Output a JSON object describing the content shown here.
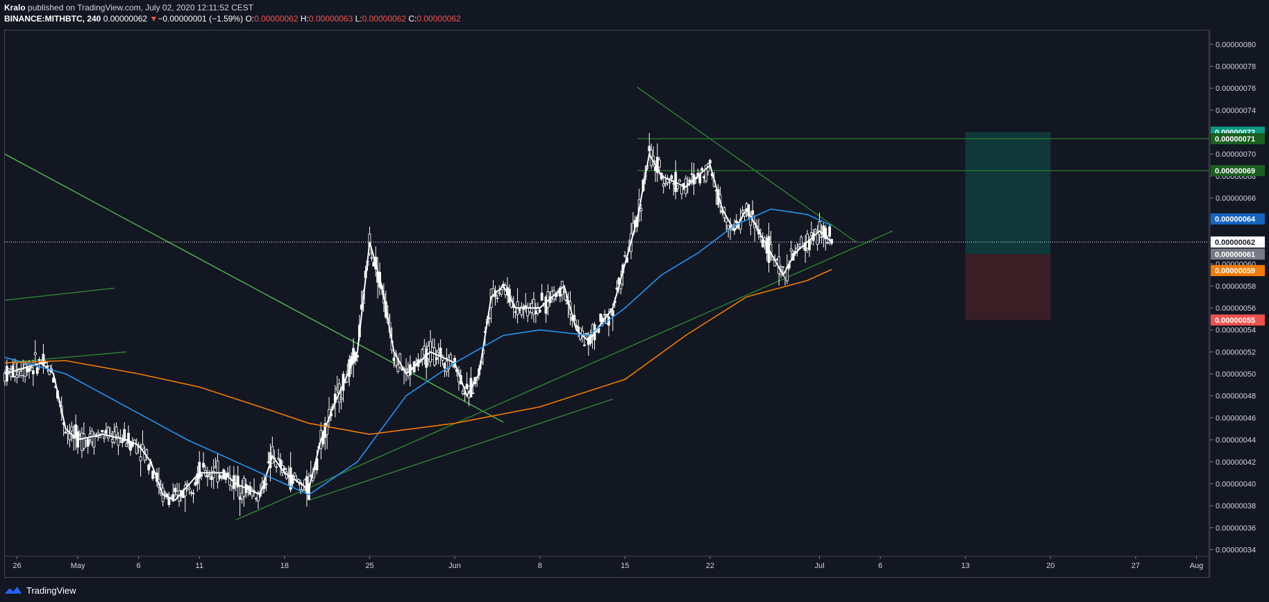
{
  "header": {
    "author": "Kralo",
    "published_text": "published on TradingView.com, July 02, 2020 12:11:52 CEST",
    "symbol": "BINANCE:MITHBTC, 240",
    "last_price": "0.00000062",
    "change_arrow": "▼",
    "change": "−0.00000001 (−1.59%)",
    "o_label": "O:",
    "o_value": "0.00000062",
    "h_label": "H:",
    "h_value": "0.00000063",
    "l_label": "L:",
    "l_value": "0.00000062",
    "c_label": "C:",
    "c_value": "0.00000062"
  },
  "footer": {
    "brand": "TradingView"
  },
  "colors": {
    "background": "#131722",
    "candle": "#ffffff",
    "trendline": "#4caf50",
    "ma_blue": "#2196f3",
    "ma_orange": "#f57c00",
    "price_fast": "#ffffff",
    "target_zone": "#103a3d",
    "stop_zone": "#3b1f26"
  },
  "chart_data": {
    "type": "line",
    "symbol": "BINANCE:MITHBTC",
    "timeframe": "240",
    "x_ticks": [
      "26",
      "May",
      "6",
      "11",
      "18",
      "25",
      "Jun",
      "8",
      "15",
      "22",
      "Jul",
      "6",
      "13",
      "20",
      "27",
      "Aug"
    ],
    "x_tick_dates": [
      "2020-04-26",
      "2020-05-01",
      "2020-05-06",
      "2020-05-11",
      "2020-05-18",
      "2020-05-25",
      "2020-06-01",
      "2020-06-08",
      "2020-06-15",
      "2020-06-22",
      "2020-07-01",
      "2020-07-06",
      "2020-07-13",
      "2020-07-20",
      "2020-07-27",
      "2020-08-01"
    ],
    "x_range": [
      "2020-04-25",
      "2020-08-02"
    ],
    "y_ticks": [
      "0.00000034",
      "0.00000036",
      "0.00000038",
      "0.00000040",
      "0.00000042",
      "0.00000044",
      "0.00000046",
      "0.00000048",
      "0.00000050",
      "0.00000052",
      "0.00000054",
      "0.00000056",
      "0.00000058",
      "0.00000060",
      "0.00000062",
      "0.00000064",
      "0.00000066",
      "0.00000068",
      "0.00000070",
      "0.00000072",
      "0.00000074",
      "0.00000076",
      "0.00000078",
      "0.00000080"
    ],
    "y_range": [
      3.34e-07,
      8.125e-07
    ],
    "series": [
      {
        "role": "price",
        "color": "#ffffff",
        "x": [
          "2020-04-25",
          "2020-04-28",
          "2020-04-29",
          "2020-04-30",
          "2020-05-01",
          "2020-05-03",
          "2020-05-05",
          "2020-05-06",
          "2020-05-07",
          "2020-05-08",
          "2020-05-09",
          "2020-05-11",
          "2020-05-13",
          "2020-05-14",
          "2020-05-16",
          "2020-05-17",
          "2020-05-18",
          "2020-05-20",
          "2020-05-21",
          "2020-05-22",
          "2020-05-24",
          "2020-05-25",
          "2020-05-26",
          "2020-05-27",
          "2020-05-28",
          "2020-05-30",
          "2020-06-01",
          "2020-06-02",
          "2020-06-03",
          "2020-06-04",
          "2020-06-05",
          "2020-06-06",
          "2020-06-08",
          "2020-06-10",
          "2020-06-11",
          "2020-06-12",
          "2020-06-14",
          "2020-06-15",
          "2020-06-16",
          "2020-06-17",
          "2020-06-18",
          "2020-06-20",
          "2020-06-21",
          "2020-06-22",
          "2020-06-23",
          "2020-06-24",
          "2020-06-25",
          "2020-06-26",
          "2020-06-27",
          "2020-06-28",
          "2020-06-29",
          "2020-06-30",
          "2020-07-01",
          "2020-07-02"
        ],
        "y": [
          5e-07,
          5.1e-07,
          5e-07,
          4.5e-07,
          4.4e-07,
          4.45e-07,
          4.4e-07,
          4.35e-07,
          4.2e-07,
          3.9e-07,
          3.85e-07,
          4.1e-07,
          4.1e-07,
          4e-07,
          3.9e-07,
          4.25e-07,
          4.1e-07,
          3.95e-07,
          4.4e-07,
          4.7e-07,
          5.2e-07,
          6.2e-07,
          5.8e-07,
          5.2e-07,
          5e-07,
          5.2e-07,
          5.1e-07,
          4.8e-07,
          5e-07,
          5.7e-07,
          5.8e-07,
          5.6e-07,
          5.6e-07,
          5.8e-07,
          5.4e-07,
          5.3e-07,
          5.6e-07,
          6e-07,
          6.4e-07,
          7e-07,
          6.8e-07,
          6.7e-07,
          6.8e-07,
          6.9e-07,
          6.5e-07,
          6.3e-07,
          6.5e-07,
          6.3e-07,
          6.1e-07,
          5.9e-07,
          6.1e-07,
          6.2e-07,
          6.3e-07,
          6.2e-07
        ]
      },
      {
        "role": "ma_blue",
        "color": "#2196f3",
        "x": [
          "2020-04-25",
          "2020-04-30",
          "2020-05-05",
          "2020-05-10",
          "2020-05-15",
          "2020-05-18",
          "2020-05-20",
          "2020-05-24",
          "2020-05-28",
          "2020-06-01",
          "2020-06-05",
          "2020-06-08",
          "2020-06-12",
          "2020-06-15",
          "2020-06-18",
          "2020-06-21",
          "2020-06-24",
          "2020-06-27",
          "2020-06-30",
          "2020-07-01",
          "2020-07-02"
        ],
        "y": [
          5.15e-07,
          5e-07,
          4.7e-07,
          4.4e-07,
          4.15e-07,
          4e-07,
          3.9e-07,
          4.2e-07,
          4.8e-07,
          5.1e-07,
          5.35e-07,
          5.4e-07,
          5.35e-07,
          5.6e-07,
          5.9e-07,
          6.1e-07,
          6.35e-07,
          6.5e-07,
          6.45e-07,
          6.4e-07,
          6.35e-07
        ]
      },
      {
        "role": "ma_orange",
        "color": "#f57c00",
        "x": [
          "2020-04-25",
          "2020-04-30",
          "2020-05-06",
          "2020-05-11",
          "2020-05-16",
          "2020-05-20",
          "2020-05-25",
          "2020-06-01",
          "2020-06-08",
          "2020-06-15",
          "2020-06-20",
          "2020-06-25",
          "2020-06-30",
          "2020-07-02"
        ],
        "y": [
          5.1e-07,
          5.12e-07,
          5e-07,
          4.88e-07,
          4.7e-07,
          4.55e-07,
          4.45e-07,
          4.55e-07,
          4.7e-07,
          4.95e-07,
          5.35e-07,
          5.7e-07,
          5.85e-07,
          5.95e-07
        ]
      }
    ],
    "drawings": [
      {
        "kind": "trendline",
        "color": "#4caf50",
        "from": [
          "2020-04-25",
          7e-07
        ],
        "to": [
          "2020-06-05",
          4.56e-07
        ]
      },
      {
        "kind": "trendline",
        "color": "#2e7d32",
        "from": [
          "2020-04-25",
          5.1e-07
        ],
        "to": [
          "2020-05-05",
          5.2e-07
        ]
      },
      {
        "kind": "trendline",
        "color": "#2e7d32",
        "from": [
          "2020-04-25",
          5.67e-07
        ],
        "to": [
          "2020-05-04",
          5.78e-07
        ]
      },
      {
        "kind": "trendline",
        "color": "#2e7d32",
        "from": [
          "2020-05-14",
          3.67e-07
        ],
        "to": [
          "2020-07-07",
          6.3e-07
        ]
      },
      {
        "kind": "trendline",
        "color": "#2e7d32",
        "from": [
          "2020-05-20",
          3.85e-07
        ],
        "to": [
          "2020-06-14",
          4.77e-07
        ]
      },
      {
        "kind": "trendline",
        "color": "#2e7d32",
        "from": [
          "2020-06-16",
          7.61e-07
        ],
        "to": [
          "2020-07-04",
          6.2e-07
        ]
      },
      {
        "kind": "hline",
        "color": "#2e7d32",
        "from_x": "2020-06-16",
        "y": 7.14e-07
      },
      {
        "kind": "hline",
        "color": "#2e7d32",
        "from_x": "2020-06-16",
        "y": 6.85e-07
      },
      {
        "kind": "dotted_hline",
        "color": "#ffffff",
        "y": 6.2e-07
      },
      {
        "kind": "target_zone",
        "x_from": "2020-07-13",
        "x_to": "2020-07-20",
        "y_from": 6.09e-07,
        "y_to": 7.2e-07
      },
      {
        "kind": "stop_zone",
        "x_from": "2020-07-13",
        "x_to": "2020-07-20",
        "y_from": 5.49e-07,
        "y_to": 6.09e-07
      }
    ],
    "price_labels": [
      {
        "text": "0.00000072",
        "value": 7.2e-07,
        "color": "#089981"
      },
      {
        "text": "0.00000071",
        "value": 7.14e-07,
        "color": "#1b5e20"
      },
      {
        "text": "0.00000069",
        "value": 6.85e-07,
        "color": "#1b5e20"
      },
      {
        "text": "0.00000064",
        "value": 6.41e-07,
        "color": "#1565c0"
      },
      {
        "text": "0.00000062",
        "value": 6.2e-07,
        "color": "#ffffff",
        "text_color": "#131722"
      },
      {
        "text": "0.00000061",
        "value": 6.09e-07,
        "color": "#787b86"
      },
      {
        "text": "0.00000059",
        "value": 5.94e-07,
        "color": "#f57c00"
      },
      {
        "text": "0.00000055",
        "value": 5.49e-07,
        "color": "#ef5350"
      }
    ]
  }
}
